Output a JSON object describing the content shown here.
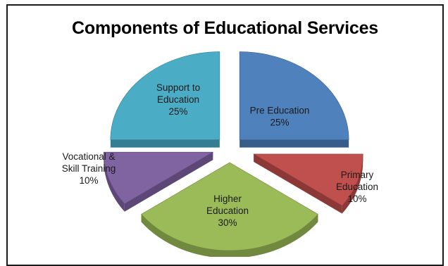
{
  "chart_data": {
    "type": "pie",
    "title": "Components of Educational Services",
    "slices": [
      {
        "label": [
          "Pre Education",
          "25%"
        ],
        "value": 25,
        "color": "#4f81bd",
        "dark": "#385d8a"
      },
      {
        "label": [
          "Primary",
          "Education",
          "10%"
        ],
        "value": 10,
        "color": "#c0504d",
        "dark": "#8c3836"
      },
      {
        "label": [
          "Higher",
          "Education",
          "30%"
        ],
        "value": 30,
        "color": "#9bbb59",
        "dark": "#71893f"
      },
      {
        "label": [
          "Vocational &",
          "Skill Training",
          "10%"
        ],
        "value": 10,
        "color": "#8064a2",
        "dark": "#5c4776"
      },
      {
        "label": [
          "Support to",
          "Education",
          "25%"
        ],
        "value": 25,
        "color": "#4bacc6",
        "dark": "#357d91"
      }
    ],
    "legend": "none",
    "grid": false
  }
}
